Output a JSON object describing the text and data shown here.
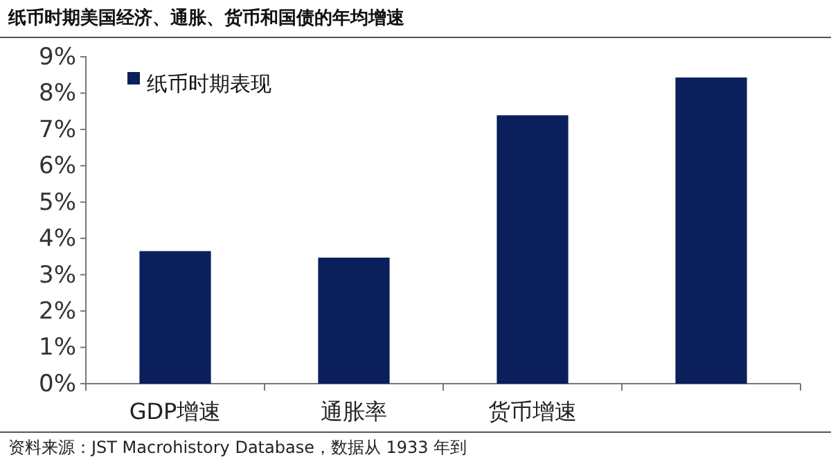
{
  "chart_data": {
    "type": "bar",
    "title": "纸币时期美国经济、通胀、货币和国债的年均增速",
    "categories": [
      "GDP增速",
      "通胀率",
      "货币增速",
      null
    ],
    "series": [
      {
        "name": "纸币时期表现",
        "color": "#0a1f5c",
        "values": [
          3.65,
          3.47,
          7.39,
          8.43
        ]
      }
    ],
    "ylim": [
      0,
      9
    ],
    "yticks": [
      {
        "value": 0,
        "label": "0%"
      },
      {
        "value": 1,
        "label": "1%"
      },
      {
        "value": 2,
        "label": "2%"
      },
      {
        "value": 3,
        "label": "3%"
      },
      {
        "value": 4,
        "label": "4%"
      },
      {
        "value": 5,
        "label": "5%"
      },
      {
        "value": 6,
        "label": "6%"
      },
      {
        "value": 7,
        "label": "7%"
      },
      {
        "value": 8,
        "label": "8%"
      },
      {
        "value": 9,
        "label": "9%"
      }
    ],
    "legend": "top left",
    "grid": false,
    "annotations": [
      "资料来源：JST Macrohistory Database，数据从 1933 年到"
    ]
  }
}
